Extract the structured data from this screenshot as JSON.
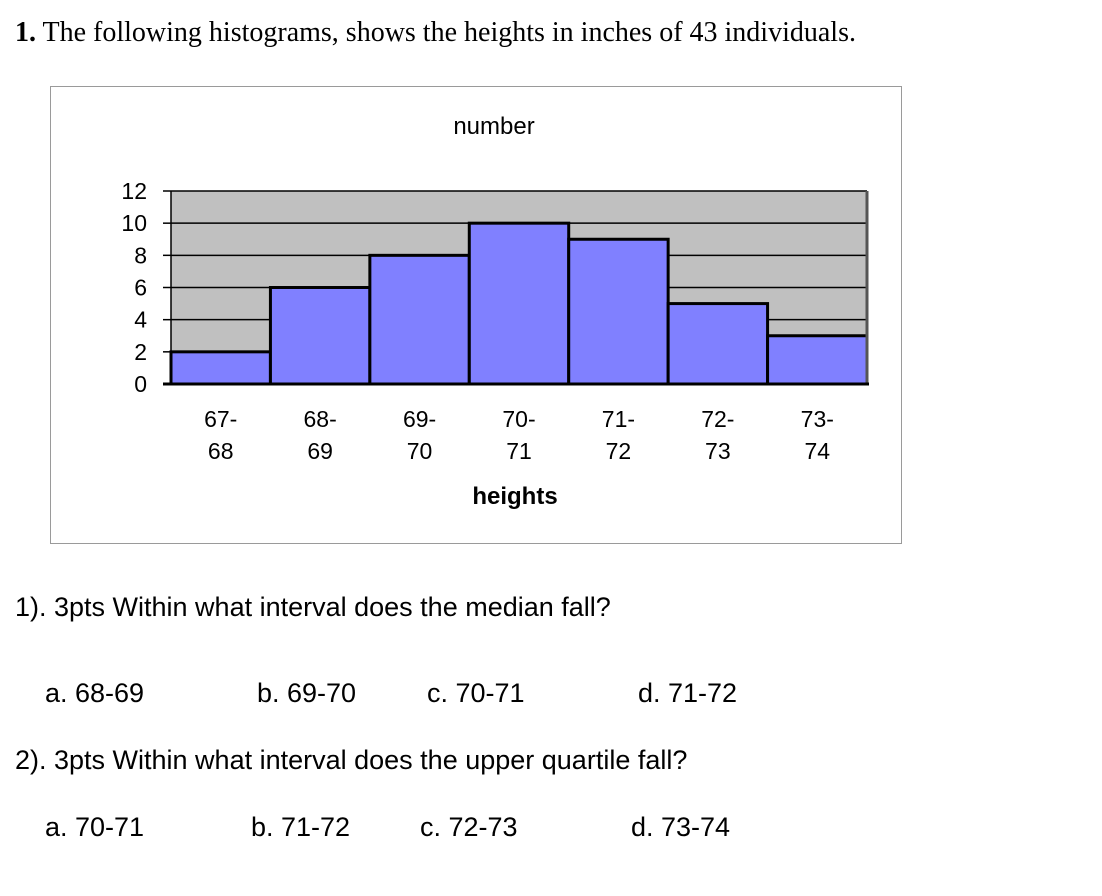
{
  "header": {
    "number": "1.",
    "text": " The following histograms, shows the heights in inches of 43 individuals."
  },
  "chart_data": {
    "type": "bar",
    "title": "number",
    "xlabel": "heights",
    "ylabel": "",
    "categories": [
      [
        "67-",
        "68"
      ],
      [
        "68-",
        "69"
      ],
      [
        "69-",
        "70"
      ],
      [
        "70-",
        "71"
      ],
      [
        "71-",
        "72"
      ],
      [
        "72-",
        "73"
      ],
      [
        "73-",
        "74"
      ]
    ],
    "values": [
      2,
      6,
      8,
      10,
      9,
      5,
      3
    ],
    "ylim": [
      0,
      12
    ],
    "yticks": [
      "0",
      "2",
      "4",
      "6",
      "8",
      "10",
      "12"
    ],
    "grid": true,
    "colors": {
      "bar": "#8080ff",
      "plot_bg": "#c0c0c0",
      "bar_stroke": "#000000",
      "grid": "#000000"
    }
  },
  "questions": [
    {
      "text": "1). 3pts Within what interval does the median fall?",
      "options": [
        "a. 68-69",
        "b. 69-70",
        "c. 70-71",
        "d. 71-72"
      ]
    },
    {
      "text": "2). 3pts Within what interval does the upper quartile fall?",
      "options": [
        "a. 70-71",
        "b. 71-72",
        "c. 72-73",
        "d. 73-74"
      ]
    }
  ]
}
